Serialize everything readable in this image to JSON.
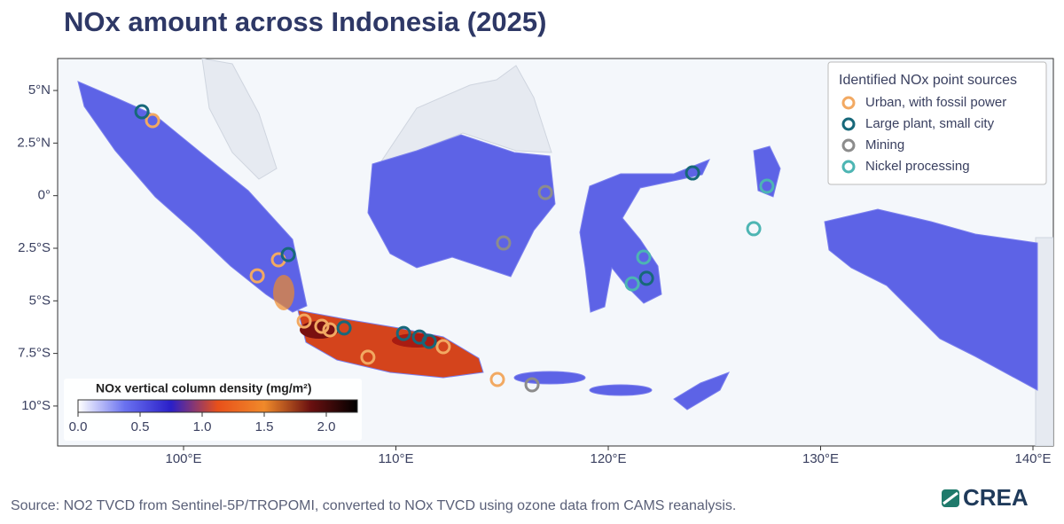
{
  "chart_data": {
    "type": "map",
    "title": "NOx amount across Indonesia (2025)",
    "xlim": [
      94.07,
      140.96
    ],
    "ylim": [
      -11.9,
      6.52
    ],
    "xticks": [
      {
        "value": 100,
        "label": "100°E"
      },
      {
        "value": 110,
        "label": "110°E"
      },
      {
        "value": 120,
        "label": "120°E"
      },
      {
        "value": 130,
        "label": "130°E"
      },
      {
        "value": 140,
        "label": "140°E"
      }
    ],
    "yticks": [
      {
        "value": 5,
        "label": "5°N"
      },
      {
        "value": 2.5,
        "label": "2.5°N"
      },
      {
        "value": 0,
        "label": "0°"
      },
      {
        "value": -2.5,
        "label": "2.5°S"
      },
      {
        "value": -5,
        "label": "5°S"
      },
      {
        "value": -7.5,
        "label": "7.5°S"
      },
      {
        "value": -10,
        "label": "10°S"
      }
    ],
    "legend_title": "Identified NOx point sources",
    "legend_position": "upper right",
    "series": [
      {
        "name": "Urban, with fossil power",
        "color": "#f2a962",
        "x": [
          98.54,
          104.47,
          103.47,
          105.68,
          106.51,
          106.89,
          108.68,
          112.23,
          114.78
        ],
        "y": [
          3.57,
          -3.05,
          -3.81,
          -5.96,
          -6.21,
          -6.38,
          -7.68,
          -7.18,
          -8.74
        ]
      },
      {
        "name": "Large plant, small city",
        "color": "#17687a",
        "x": [
          98.04,
          104.93,
          107.56,
          110.36,
          111.11,
          111.57,
          123.97,
          121.8
        ],
        "y": [
          3.99,
          -2.8,
          -6.29,
          -6.55,
          -6.72,
          -6.93,
          1.08,
          -3.93
        ]
      },
      {
        "name": "Mining",
        "color": "#8c8c8c",
        "x": [
          117.04,
          115.07,
          116.41
        ],
        "y": [
          0.15,
          -2.25,
          -8.99
        ]
      },
      {
        "name": "Nickel processing",
        "color": "#4db5b3",
        "x": [
          121.67,
          121.13,
          127.47,
          126.85
        ],
        "y": [
          -2.92,
          -4.19,
          0.45,
          -1.57
        ]
      }
    ],
    "colorbar": {
      "label": "NOx vertical column density (mg/m²)",
      "lim": [
        0,
        2.25
      ],
      "ticks": [
        {
          "value": 0,
          "label": "0.0"
        },
        0.5,
        {
          "value": 1,
          "label": "1.0"
        },
        1.5,
        {
          "value": 2,
          "label": "2.0"
        }
      ],
      "colors": [
        "#ffffff",
        "#6a72f0",
        "#2a1fc8",
        "#e8501a",
        "#f08a2a",
        "#6a1010",
        "#000000"
      ]
    }
  },
  "source": "Source: NO2 TVCD from Sentinel-5P/TROPOMI, converted to NOx TVCD using ozone data from CAMS reanalysis.",
  "logo": "CREA"
}
